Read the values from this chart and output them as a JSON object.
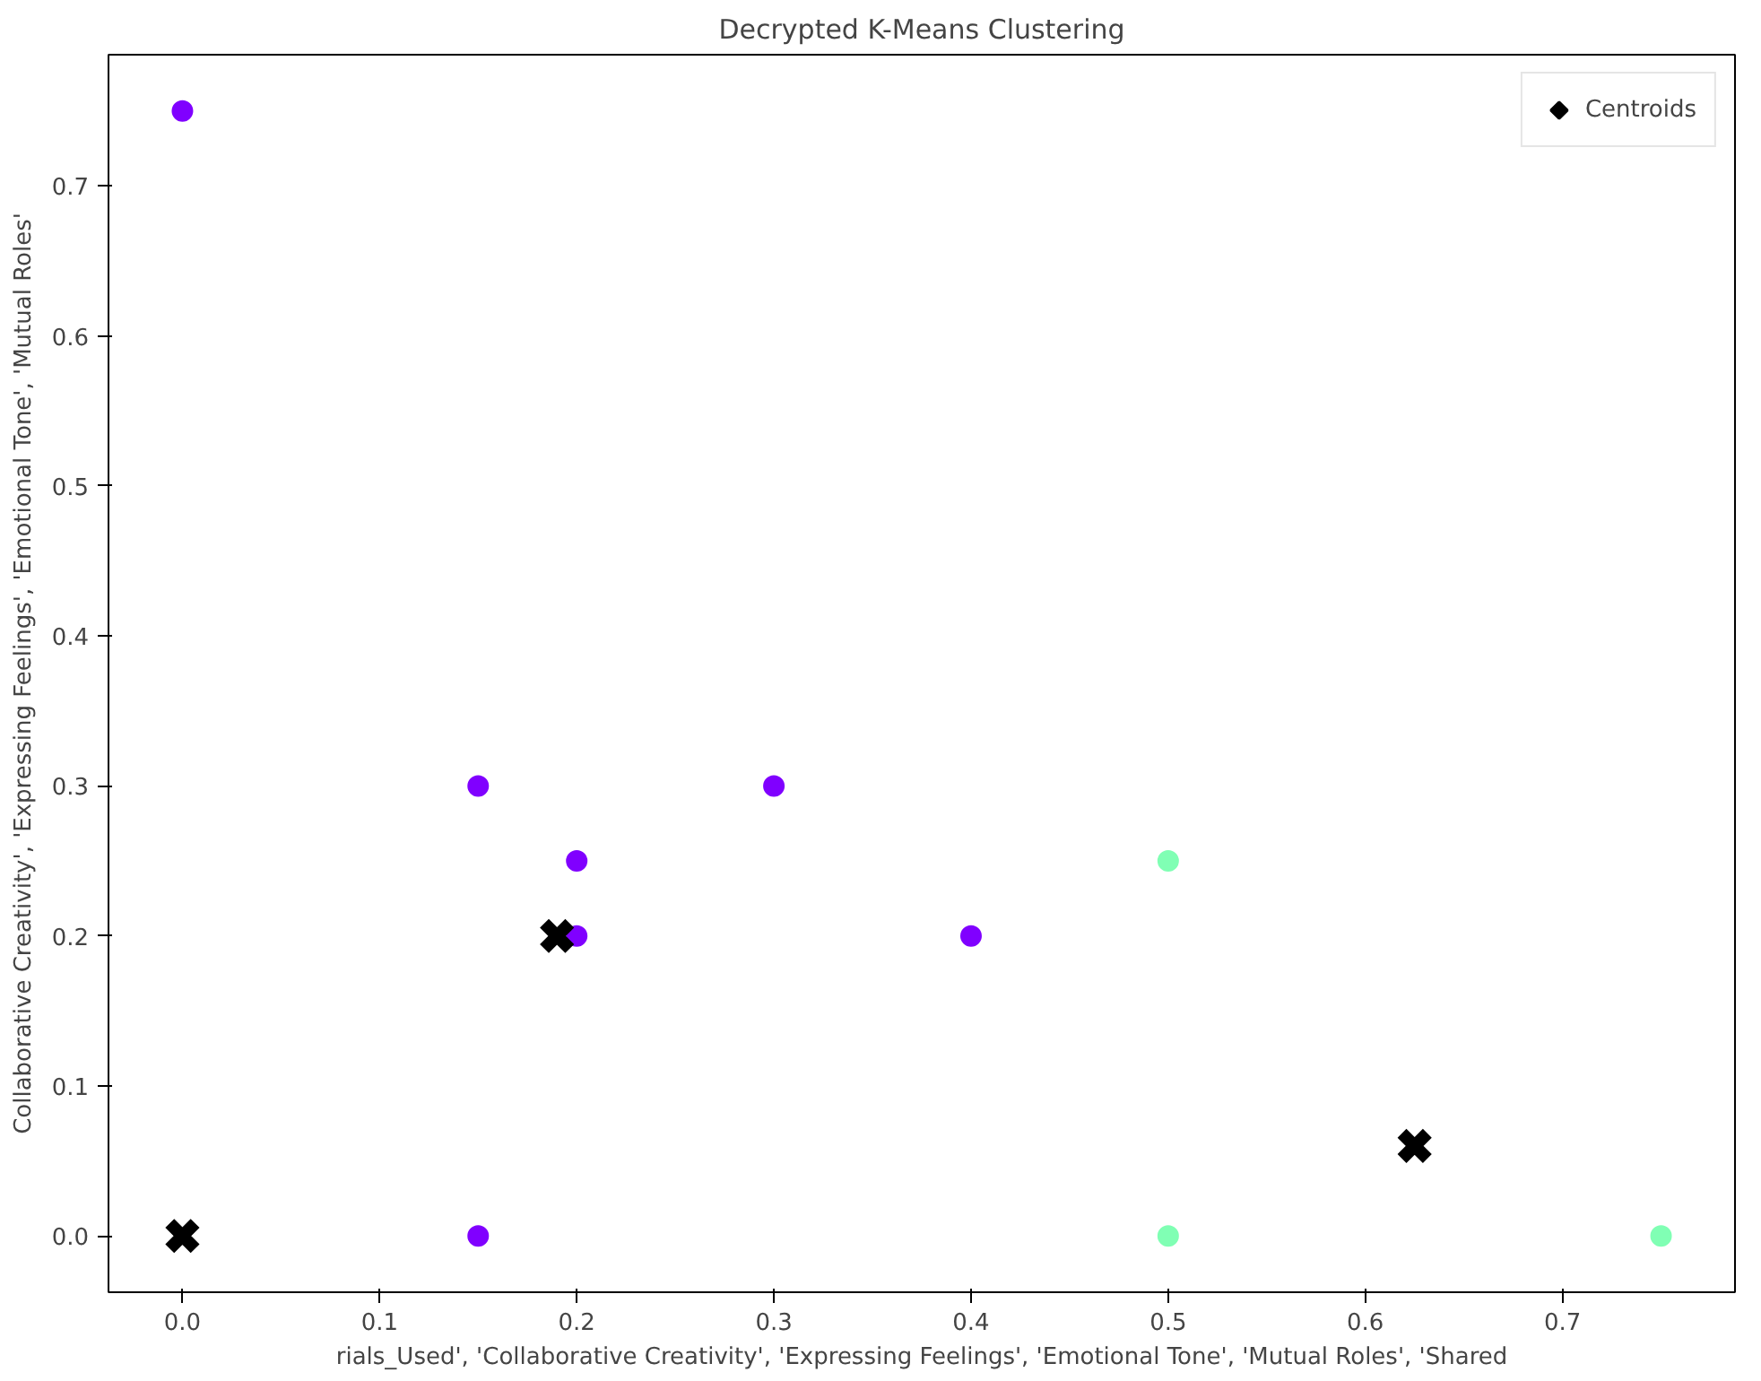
{
  "chart_data": {
    "type": "scatter",
    "title": "Decrypted K-Means Clustering",
    "xlabel": "rials_Used', 'Collaborative Creativity', 'Expressing Feelings', 'Emotional Tone', 'Mutual Roles', 'Shared",
    "ylabel": "Collaborative Creativity', 'Expressing Feelings', 'Emotional Tone', 'Mutual Roles'",
    "series": [
      {
        "color": "#8000ff",
        "marker": "circle",
        "x": [
          0,
          0.15,
          0.2,
          0.3,
          0.2,
          0.4,
          0.15
        ],
        "values": [
          0.75,
          0.3,
          0.25,
          0.3,
          0.2,
          0.2,
          0
        ]
      },
      {
        "color": "#80ffb4",
        "marker": "circle",
        "x": [
          0.5,
          0.5,
          0.75
        ],
        "values": [
          0.25,
          0,
          0
        ]
      },
      {
        "name": "Centroids",
        "color": "#000000",
        "marker": "cross",
        "x": [
          0,
          0.19,
          0.625
        ],
        "values": [
          0,
          0.2,
          0.06
        ]
      }
    ],
    "xlim": [
      -0.0375,
      0.7875
    ],
    "ylim": [
      -0.0375,
      0.7875
    ],
    "xticks": [
      {
        "value": 0,
        "label": "0.0"
      },
      0.1,
      0.2,
      0.3,
      0.4,
      0.5,
      0.6,
      0.7
    ],
    "yticks": [
      {
        "value": 0,
        "label": "0.0"
      },
      0.1,
      0.2,
      0.3,
      0.4,
      0.5,
      0.6,
      0.7
    ],
    "grid": false,
    "legend": "top right"
  }
}
